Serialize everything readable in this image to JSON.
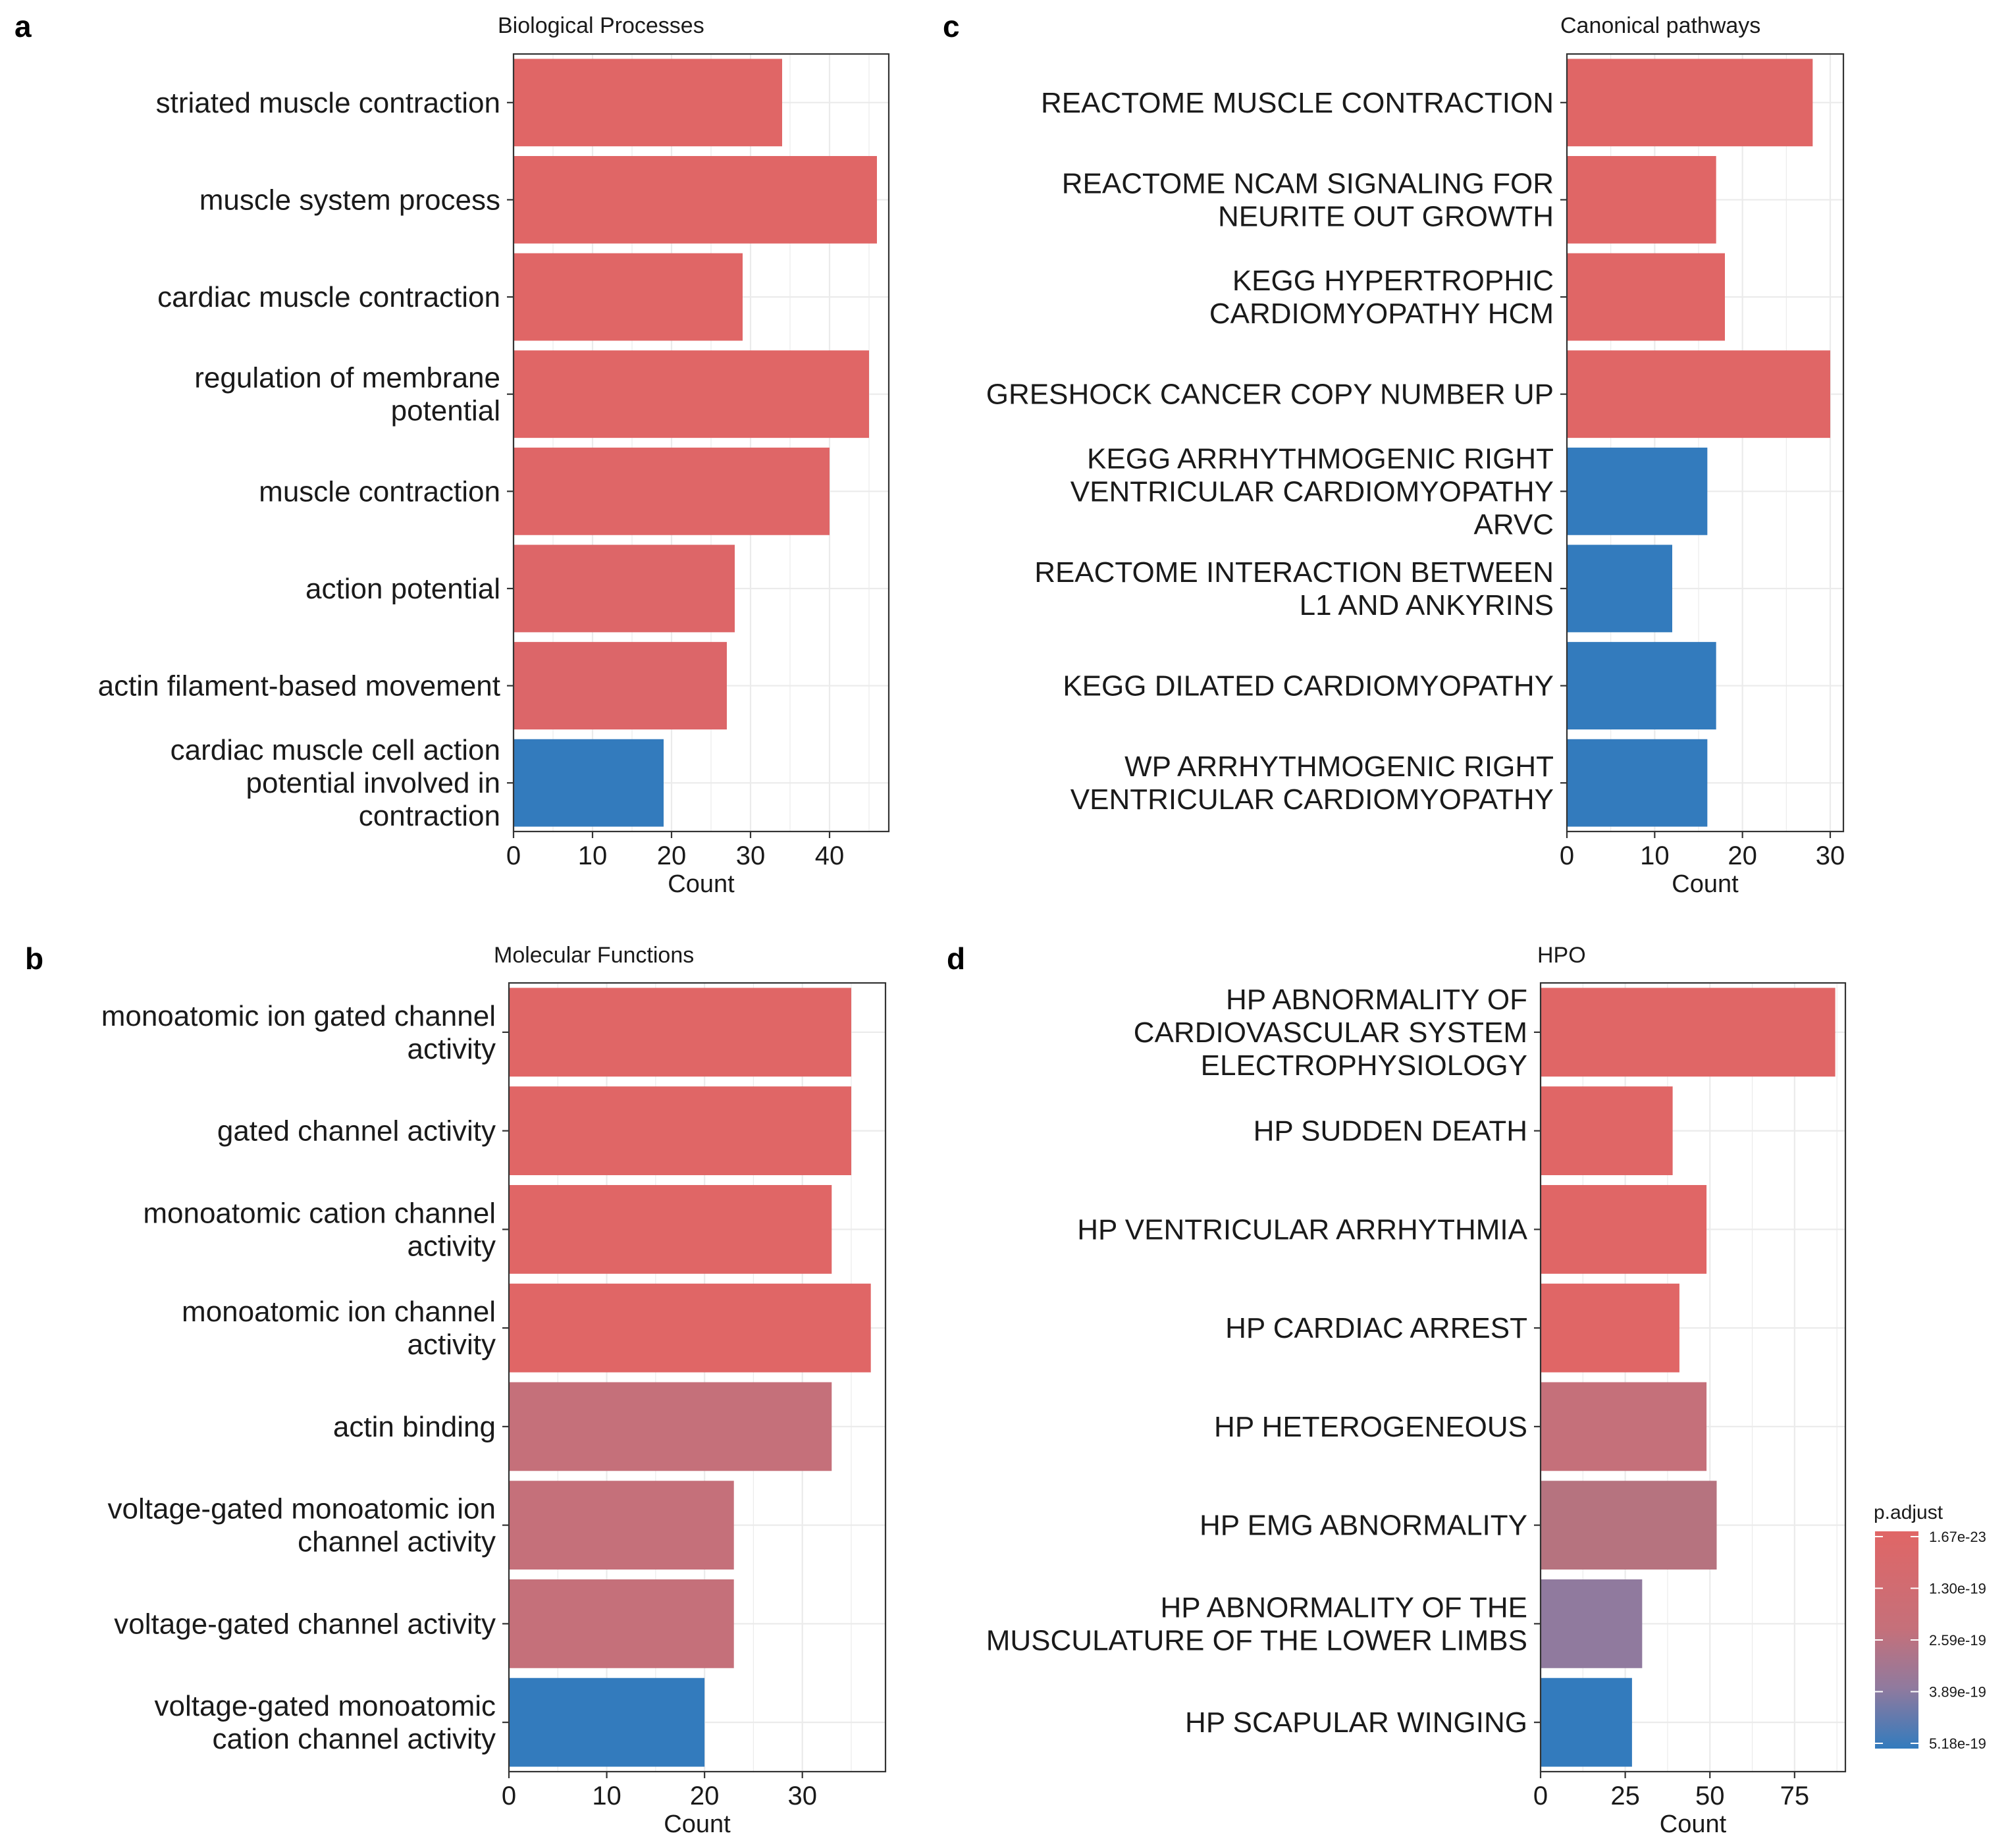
{
  "panel_letters": [
    "a",
    "b",
    "c",
    "d"
  ],
  "legend": {
    "title": "p.adjust",
    "ticks": [
      "1.67e-23",
      "1.30e-19",
      "2.59e-19",
      "3.89e-19",
      "5.18e-19"
    ],
    "color_high": "#e06666",
    "color_low": "#337bbd"
  },
  "chart_data": [
    {
      "type": "bar",
      "orientation": "horizontal",
      "panel": "a",
      "title": "Biological Processes",
      "xlabel": "Count",
      "xlim": [
        0,
        47.5
      ],
      "xticks": [
        0,
        10,
        20,
        30,
        40
      ],
      "grid": true,
      "categories": [
        [
          "striated muscle contraction"
        ],
        [
          "muscle system process"
        ],
        [
          "cardiac muscle contraction"
        ],
        [
          "regulation of membrane",
          "potential"
        ],
        [
          "muscle contraction"
        ],
        [
          "action potential"
        ],
        [
          "actin filament-based movement"
        ],
        [
          "cardiac muscle cell action",
          "potential involved in",
          "contraction"
        ]
      ],
      "values": [
        34,
        46,
        29,
        45,
        40,
        28,
        27,
        19
      ],
      "colors": [
        "#e06666",
        "#e06666",
        "#e06666",
        "#e06666",
        "#df6667",
        "#dd6668",
        "#dc6669",
        "#337bbd"
      ]
    },
    {
      "type": "bar",
      "orientation": "horizontal",
      "panel": "b",
      "title": "Molecular Functions",
      "xlabel": "Count",
      "xlim": [
        0,
        38.5
      ],
      "xticks": [
        0,
        10,
        20,
        30
      ],
      "grid": true,
      "categories": [
        [
          "monoatomic ion gated channel",
          "activity"
        ],
        [
          "gated channel activity"
        ],
        [
          "monoatomic cation channel",
          "activity"
        ],
        [
          "monoatomic ion channel",
          "activity"
        ],
        [
          "actin binding"
        ],
        [
          "voltage-gated monoatomic ion",
          "channel activity"
        ],
        [
          "voltage-gated channel activity"
        ],
        [
          "voltage-gated monoatomic",
          "cation channel activity"
        ]
      ],
      "values": [
        35,
        35,
        33,
        37,
        33,
        23,
        23,
        20
      ],
      "colors": [
        "#e06666",
        "#e06666",
        "#e06666",
        "#e06666",
        "#c5707a",
        "#c5707a",
        "#c5707a",
        "#337bbd"
      ]
    },
    {
      "type": "bar",
      "orientation": "horizontal",
      "panel": "c",
      "title": "Canonical pathways",
      "xlabel": "Count",
      "xlim": [
        0,
        31.5
      ],
      "xticks": [
        0,
        10,
        20,
        30
      ],
      "grid": true,
      "categories": [
        [
          "REACTOME MUSCLE CONTRACTION"
        ],
        [
          "REACTOME NCAM SIGNALING FOR",
          "NEURITE OUT GROWTH"
        ],
        [
          "KEGG HYPERTROPHIC",
          "CARDIOMYOPATHY HCM"
        ],
        [
          "GRESHOCK CANCER COPY NUMBER UP"
        ],
        [
          "KEGG ARRHYTHMOGENIC RIGHT",
          "VENTRICULAR CARDIOMYOPATHY",
          "ARVC"
        ],
        [
          "REACTOME INTERACTION BETWEEN",
          "L1 AND ANKYRINS"
        ],
        [
          "KEGG DILATED CARDIOMYOPATHY"
        ],
        [
          "WP ARRHYTHMOGENIC RIGHT",
          "VENTRICULAR CARDIOMYOPATHY"
        ]
      ],
      "values": [
        28,
        17,
        18,
        30,
        16,
        12,
        17,
        16
      ],
      "colors": [
        "#e06666",
        "#e06666",
        "#e06666",
        "#e06666",
        "#337bbd",
        "#337bbd",
        "#337bbd",
        "#337bbd"
      ]
    },
    {
      "type": "bar",
      "orientation": "horizontal",
      "panel": "d",
      "title": "HPO",
      "xlabel": "Count",
      "xlim": [
        0,
        90
      ],
      "xticks": [
        0,
        25,
        50,
        75
      ],
      "grid": true,
      "categories": [
        [
          "HP ABNORMALITY OF",
          "CARDIOVASCULAR SYSTEM",
          "ELECTROPHYSIOLOGY"
        ],
        [
          "HP SUDDEN DEATH"
        ],
        [
          "HP VENTRICULAR ARRHYTHMIA"
        ],
        [
          "HP CARDIAC ARREST"
        ],
        [
          "HP HETEROGENEOUS"
        ],
        [
          "HP EMG ABNORMALITY"
        ],
        [
          "HP ABNORMALITY OF THE",
          "MUSCULATURE OF THE LOWER LIMBS"
        ],
        [
          "HP SCAPULAR WINGING"
        ]
      ],
      "values": [
        87,
        39,
        49,
        41,
        49,
        52,
        30,
        27
      ],
      "colors": [
        "#e06666",
        "#e06666",
        "#e06666",
        "#e06666",
        "#c5707a",
        "#b6737f",
        "#907a9e",
        "#337bbd"
      ]
    }
  ]
}
